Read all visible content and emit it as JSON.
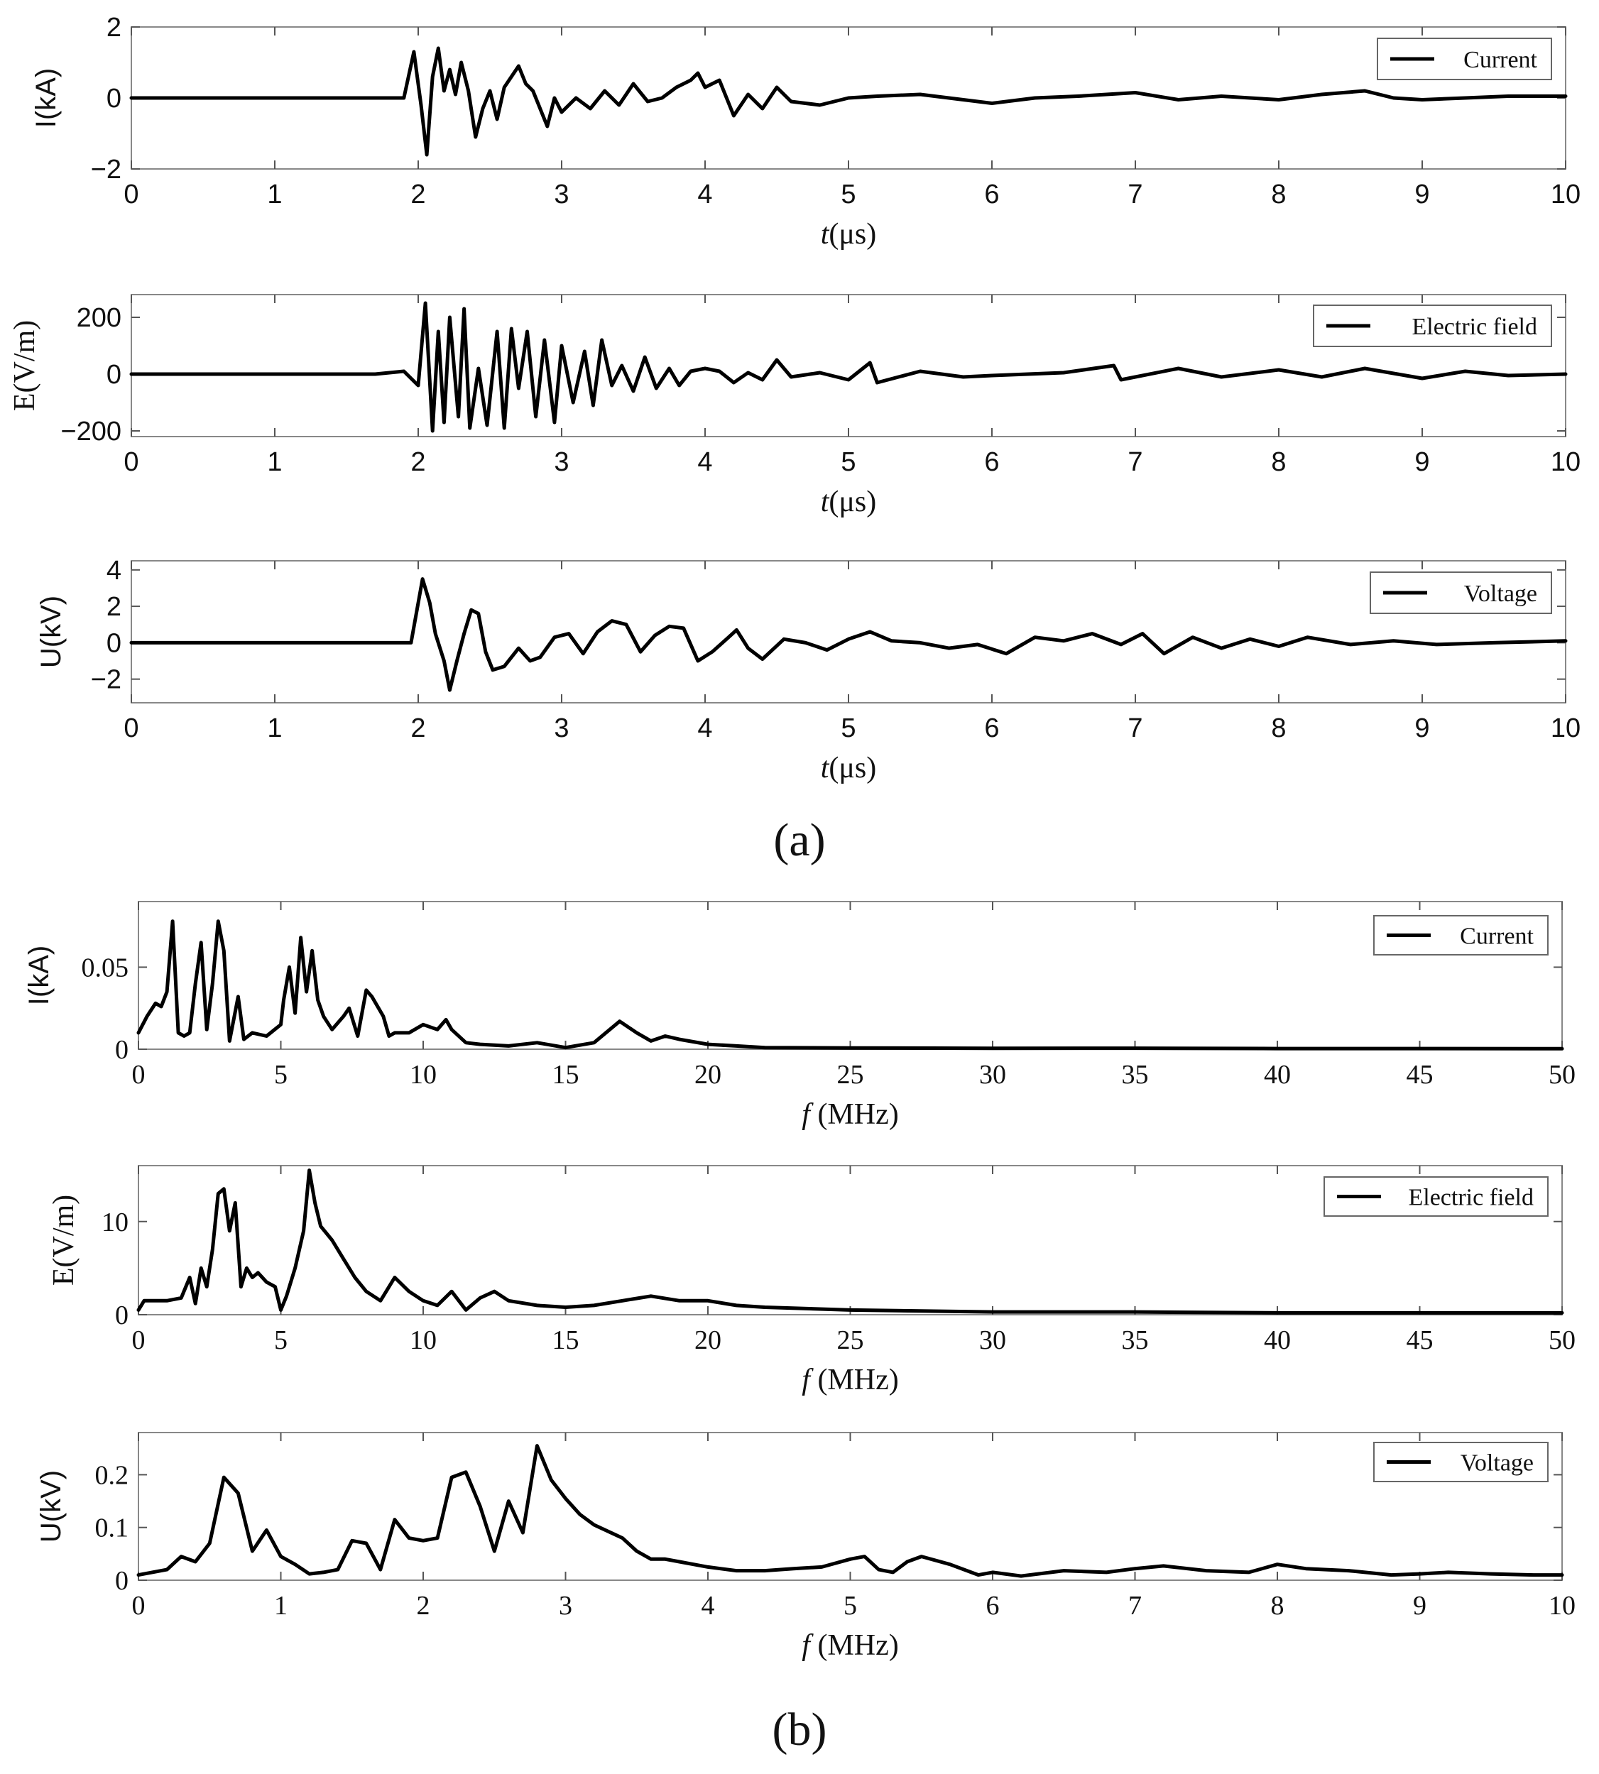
{
  "figure": {
    "label_a": "(a)",
    "label_b": "(b)"
  },
  "chart_data": [
    {
      "type": "line",
      "panel": "a",
      "ylabel": "I(kA)",
      "xlabel_italic": "t",
      "xlabel_rest": "(μs)",
      "legend": "Current",
      "xlim": [
        0,
        10
      ],
      "ylim": [
        -2,
        2
      ],
      "xticks": [
        "0",
        "1",
        "2",
        "3",
        "4",
        "5",
        "6",
        "7",
        "8",
        "9",
        "10"
      ],
      "yticks": [
        "2",
        "0",
        "−2"
      ],
      "ytick_values": [
        2,
        0,
        -2
      ],
      "series": [
        {
          "name": "Current",
          "x": [
            0,
            1.9,
            1.97,
            2.02,
            2.06,
            2.1,
            2.14,
            2.18,
            2.22,
            2.26,
            2.3,
            2.35,
            2.4,
            2.45,
            2.5,
            2.55,
            2.6,
            2.65,
            2.7,
            2.75,
            2.8,
            2.85,
            2.9,
            2.95,
            3.0,
            3.1,
            3.2,
            3.3,
            3.4,
            3.5,
            3.6,
            3.7,
            3.8,
            3.9,
            3.95,
            4.0,
            4.1,
            4.2,
            4.3,
            4.4,
            4.5,
            4.6,
            4.8,
            5.0,
            5.2,
            5.5,
            5.8,
            6.0,
            6.3,
            6.6,
            7.0,
            7.3,
            7.6,
            8.0,
            8.3,
            8.6,
            8.8,
            9.0,
            9.3,
            9.6,
            10.0
          ],
          "y": [
            0,
            0,
            1.3,
            -0.2,
            -1.6,
            0.6,
            1.4,
            0.2,
            0.8,
            0.1,
            1.0,
            0.2,
            -1.1,
            -0.3,
            0.2,
            -0.6,
            0.3,
            0.6,
            0.9,
            0.4,
            0.2,
            -0.3,
            -0.8,
            0.0,
            -0.4,
            0.0,
            -0.3,
            0.2,
            -0.2,
            0.4,
            -0.1,
            0.0,
            0.3,
            0.5,
            0.7,
            0.3,
            0.5,
            -0.5,
            0.1,
            -0.3,
            0.3,
            -0.1,
            -0.2,
            0.0,
            0.05,
            0.1,
            -0.05,
            -0.15,
            0.0,
            0.05,
            0.15,
            -0.05,
            0.05,
            -0.05,
            0.1,
            0.2,
            0.0,
            -0.05,
            0.0,
            0.05,
            0.05
          ]
        }
      ]
    },
    {
      "type": "line",
      "panel": "a",
      "ylabel": "E(V/m)",
      "xlabel_italic": "t",
      "xlabel_rest": "(μs)",
      "legend": "Electric field",
      "xlim": [
        0,
        10
      ],
      "ylim": [
        -220,
        280
      ],
      "xticks": [
        "0",
        "1",
        "2",
        "3",
        "4",
        "5",
        "6",
        "7",
        "8",
        "9",
        "10"
      ],
      "yticks": [
        "200",
        "0",
        "−200"
      ],
      "ytick_values": [
        200,
        0,
        -200
      ],
      "series": [
        {
          "name": "Electric field",
          "x": [
            0,
            1.7,
            1.9,
            2.0,
            2.05,
            2.1,
            2.14,
            2.18,
            2.22,
            2.28,
            2.32,
            2.36,
            2.42,
            2.48,
            2.55,
            2.6,
            2.65,
            2.7,
            2.76,
            2.82,
            2.88,
            2.95,
            3.0,
            3.08,
            3.16,
            3.22,
            3.28,
            3.35,
            3.42,
            3.5,
            3.58,
            3.66,
            3.75,
            3.82,
            3.9,
            4.0,
            4.1,
            4.2,
            4.3,
            4.4,
            4.5,
            4.6,
            4.8,
            5.0,
            5.15,
            5.2,
            5.5,
            5.8,
            6.0,
            6.5,
            6.85,
            6.9,
            7.0,
            7.3,
            7.6,
            8.0,
            8.3,
            8.6,
            9.0,
            9.3,
            9.6,
            10.0
          ],
          "y": [
            0,
            0,
            10,
            -40,
            250,
            -200,
            150,
            -170,
            200,
            -150,
            230,
            -190,
            20,
            -180,
            150,
            -190,
            160,
            -50,
            150,
            -150,
            120,
            -170,
            100,
            -100,
            80,
            -110,
            120,
            -40,
            30,
            -60,
            60,
            -50,
            20,
            -40,
            10,
            20,
            10,
            -30,
            5,
            -20,
            50,
            -10,
            5,
            -20,
            40,
            -30,
            10,
            -10,
            -5,
            5,
            30,
            -20,
            -10,
            20,
            -10,
            15,
            -10,
            20,
            -15,
            10,
            -5,
            0
          ]
        }
      ]
    },
    {
      "type": "line",
      "panel": "a",
      "ylabel": "U(kV)",
      "xlabel_italic": "t",
      "xlabel_rest": "(μs)",
      "legend": "Voltage",
      "xlim": [
        0,
        10
      ],
      "ylim": [
        -3.3,
        4.5
      ],
      "xticks": [
        "0",
        "1",
        "2",
        "3",
        "4",
        "5",
        "6",
        "7",
        "8",
        "9",
        "10"
      ],
      "yticks": [
        "4",
        "2",
        "0",
        "−2"
      ],
      "ytick_values": [
        4,
        2,
        0,
        -2
      ],
      "series": [
        {
          "name": "Voltage",
          "x": [
            0,
            1.95,
            2.03,
            2.08,
            2.12,
            2.18,
            2.22,
            2.27,
            2.32,
            2.37,
            2.42,
            2.47,
            2.52,
            2.6,
            2.7,
            2.78,
            2.85,
            2.95,
            3.05,
            3.15,
            3.25,
            3.35,
            3.45,
            3.55,
            3.65,
            3.75,
            3.85,
            3.95,
            4.05,
            4.15,
            4.22,
            4.3,
            4.4,
            4.55,
            4.7,
            4.85,
            5.0,
            5.15,
            5.3,
            5.5,
            5.7,
            5.9,
            6.1,
            6.3,
            6.5,
            6.7,
            6.9,
            7.05,
            7.2,
            7.4,
            7.6,
            7.8,
            8.0,
            8.2,
            8.5,
            8.8,
            9.1,
            9.5,
            10.0
          ],
          "y": [
            0,
            0,
            3.5,
            2.2,
            0.5,
            -1.0,
            -2.6,
            -1.0,
            0.5,
            1.8,
            1.6,
            -0.5,
            -1.5,
            -1.3,
            -0.3,
            -1.0,
            -0.8,
            0.3,
            0.5,
            -0.6,
            0.6,
            1.2,
            1.0,
            -0.5,
            0.4,
            0.9,
            0.8,
            -1.0,
            -0.5,
            0.2,
            0.7,
            -0.3,
            -0.9,
            0.2,
            0.0,
            -0.4,
            0.2,
            0.6,
            0.1,
            0.0,
            -0.3,
            -0.1,
            -0.6,
            0.3,
            0.1,
            0.5,
            -0.1,
            0.5,
            -0.6,
            0.3,
            -0.3,
            0.2,
            -0.2,
            0.3,
            -0.1,
            0.1,
            -0.1,
            0.0,
            0.1
          ]
        }
      ]
    },
    {
      "type": "line",
      "panel": "b",
      "ylabel": "I(kA)",
      "xlabel_italic": "f",
      "xlabel_rest": " (MHz)",
      "legend": "Current",
      "xlim": [
        0,
        50
      ],
      "ylim": [
        0,
        0.09
      ],
      "xticks": [
        "0",
        "5",
        "10",
        "15",
        "20",
        "25",
        "30",
        "35",
        "40",
        "45",
        "50"
      ],
      "yticks": [
        "0.05",
        "0"
      ],
      "ytick_values": [
        0.05,
        0
      ],
      "series": [
        {
          "name": "Current",
          "x": [
            0,
            0.3,
            0.6,
            0.8,
            1.0,
            1.2,
            1.4,
            1.6,
            1.8,
            2.0,
            2.2,
            2.4,
            2.6,
            2.8,
            3.0,
            3.2,
            3.5,
            3.7,
            4.0,
            4.5,
            5.0,
            5.1,
            5.3,
            5.5,
            5.7,
            5.9,
            6.1,
            6.3,
            6.5,
            6.8,
            7.2,
            7.4,
            7.7,
            8.0,
            8.2,
            8.6,
            8.8,
            9.0,
            9.5,
            10.0,
            10.5,
            10.8,
            11.0,
            11.5,
            12.0,
            13,
            14,
            15,
            16,
            16.9,
            17.5,
            18,
            18.5,
            19,
            20,
            21,
            22,
            25,
            30,
            35,
            40,
            45,
            50
          ],
          "y": [
            0.01,
            0.02,
            0.028,
            0.026,
            0.035,
            0.078,
            0.01,
            0.008,
            0.01,
            0.04,
            0.065,
            0.012,
            0.04,
            0.078,
            0.06,
            0.005,
            0.032,
            0.006,
            0.01,
            0.008,
            0.015,
            0.03,
            0.05,
            0.022,
            0.068,
            0.035,
            0.06,
            0.03,
            0.02,
            0.012,
            0.02,
            0.025,
            0.008,
            0.036,
            0.032,
            0.02,
            0.008,
            0.01,
            0.01,
            0.015,
            0.012,
            0.018,
            0.012,
            0.004,
            0.003,
            0.002,
            0.004,
            0.001,
            0.004,
            0.017,
            0.01,
            0.005,
            0.008,
            0.006,
            0.003,
            0.002,
            0.001,
            0.0008,
            0.0005,
            0.0006,
            0.0004,
            0.0004,
            0.0003
          ]
        }
      ]
    },
    {
      "type": "line",
      "panel": "b",
      "ylabel": "E(V/m)",
      "xlabel_italic": "f",
      "xlabel_rest": " (MHz)",
      "legend": "Electric field",
      "xlim": [
        0,
        50
      ],
      "ylim": [
        0,
        16
      ],
      "xticks": [
        "0",
        "5",
        "10",
        "15",
        "20",
        "25",
        "30",
        "35",
        "40",
        "45",
        "50"
      ],
      "yticks": [
        "10",
        "0"
      ],
      "ytick_values": [
        10,
        0
      ],
      "series": [
        {
          "name": "Electric field",
          "x": [
            0,
            0.2,
            1.0,
            1.5,
            1.8,
            2.0,
            2.2,
            2.4,
            2.6,
            2.8,
            3.0,
            3.2,
            3.4,
            3.6,
            3.8,
            4.0,
            4.2,
            4.5,
            4.8,
            5.0,
            5.2,
            5.5,
            5.8,
            6.0,
            6.2,
            6.4,
            6.8,
            7.2,
            7.6,
            8.0,
            8.5,
            9.0,
            9.5,
            10,
            10.5,
            11,
            11.5,
            12,
            12.5,
            13,
            14,
            15,
            16,
            17,
            18,
            19,
            20,
            21,
            22,
            25,
            30,
            35,
            40,
            45,
            50
          ],
          "y": [
            0.5,
            1.5,
            1.5,
            1.8,
            4.0,
            1.2,
            5.0,
            3.0,
            7.0,
            13.0,
            13.5,
            9.0,
            12.0,
            3.0,
            5.0,
            4.0,
            4.5,
            3.5,
            3.0,
            0.5,
            2.0,
            5.0,
            9.0,
            15.5,
            12.0,
            9.5,
            8.0,
            6.0,
            4.0,
            2.5,
            1.5,
            4.0,
            2.5,
            1.5,
            1.0,
            2.5,
            0.5,
            1.8,
            2.5,
            1.5,
            1.0,
            0.8,
            1.0,
            1.5,
            2.0,
            1.5,
            1.5,
            1.0,
            0.8,
            0.5,
            0.3,
            0.3,
            0.2,
            0.2,
            0.2
          ]
        }
      ]
    },
    {
      "type": "line",
      "panel": "b",
      "ylabel": "U(kV)",
      "xlabel_italic": "f",
      "xlabel_rest": " (MHz)",
      "legend": "Voltage",
      "xlim": [
        0,
        10
      ],
      "ylim": [
        0,
        0.28
      ],
      "xticks": [
        "0",
        "1",
        "2",
        "3",
        "4",
        "5",
        "6",
        "7",
        "8",
        "9",
        "10"
      ],
      "yticks": [
        "0.2",
        "0.1",
        "0"
      ],
      "ytick_values": [
        0.2,
        0.1,
        0
      ],
      "series": [
        {
          "name": "Voltage",
          "x": [
            0,
            0.2,
            0.3,
            0.4,
            0.5,
            0.6,
            0.7,
            0.8,
            0.9,
            1.0,
            1.1,
            1.2,
            1.3,
            1.4,
            1.5,
            1.6,
            1.7,
            1.8,
            1.9,
            2.0,
            2.1,
            2.2,
            2.3,
            2.4,
            2.5,
            2.6,
            2.7,
            2.8,
            2.9,
            3.0,
            3.1,
            3.2,
            3.4,
            3.5,
            3.6,
            3.7,
            3.8,
            4.0,
            4.2,
            4.4,
            4.6,
            4.8,
            5.0,
            5.1,
            5.2,
            5.3,
            5.4,
            5.5,
            5.7,
            5.9,
            6.0,
            6.2,
            6.5,
            6.8,
            7.0,
            7.2,
            7.5,
            7.8,
            8.0,
            8.2,
            8.5,
            8.8,
            9.0,
            9.2,
            9.5,
            9.8,
            10.0
          ],
          "y": [
            0.01,
            0.02,
            0.045,
            0.035,
            0.07,
            0.195,
            0.165,
            0.055,
            0.095,
            0.045,
            0.03,
            0.012,
            0.015,
            0.02,
            0.075,
            0.07,
            0.02,
            0.115,
            0.08,
            0.075,
            0.08,
            0.195,
            0.205,
            0.14,
            0.055,
            0.15,
            0.09,
            0.255,
            0.19,
            0.155,
            0.125,
            0.105,
            0.08,
            0.055,
            0.04,
            0.04,
            0.035,
            0.025,
            0.018,
            0.018,
            0.022,
            0.025,
            0.04,
            0.045,
            0.02,
            0.015,
            0.035,
            0.045,
            0.03,
            0.01,
            0.015,
            0.008,
            0.018,
            0.015,
            0.022,
            0.027,
            0.018,
            0.015,
            0.03,
            0.022,
            0.018,
            0.01,
            0.012,
            0.015,
            0.012,
            0.01,
            0.01
          ]
        }
      ]
    }
  ]
}
